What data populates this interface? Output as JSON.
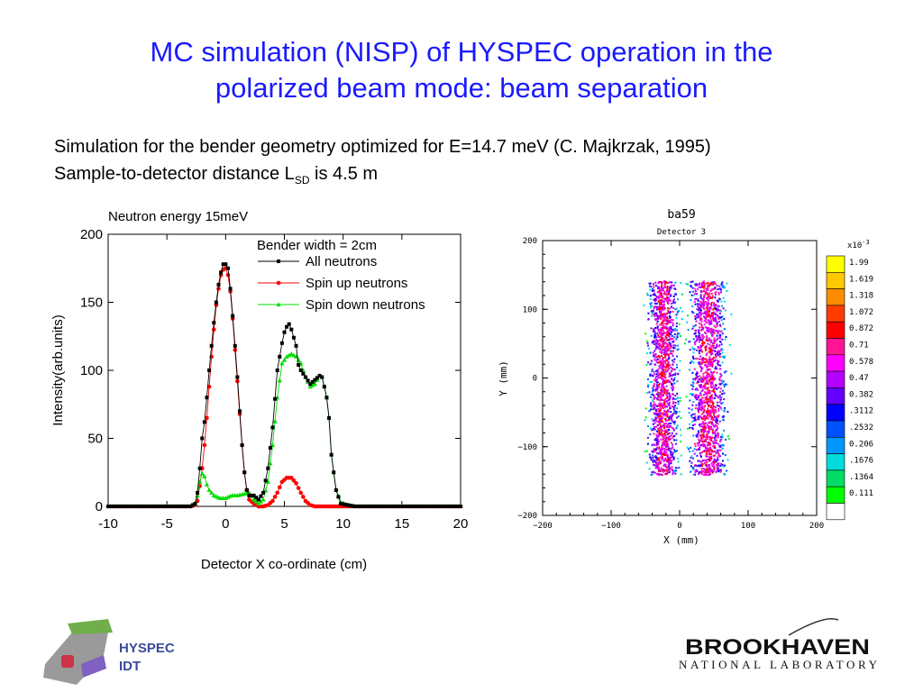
{
  "slide": {
    "title_line1": "MC simulation (NISP) of HYSPEC operation in the",
    "title_line2": "polarized beam mode: beam separation",
    "subtitle_line1": "Simulation for the bender geometry optimized for E=14.7 meV (C. Majkrzak, 1995)",
    "subtitle_line2_pre": "Sample-to-detector distance L",
    "subtitle_line2_sub": "SD",
    "subtitle_line2_post": " is 4.5 m"
  },
  "chart_data": [
    {
      "type": "line",
      "title": "Neutron energy 15meV",
      "annotation": "Bender width = 2cm",
      "xlabel": "Detector X co-ordinate (cm)",
      "ylabel": "Intensity(arb.units)",
      "xlim": [
        -10,
        20
      ],
      "ylim": [
        0,
        200
      ],
      "xticks": [
        "-10",
        "-5",
        "0",
        "5",
        "10",
        "15",
        "20"
      ],
      "yticks": [
        "0",
        "50",
        "100",
        "150",
        "200"
      ],
      "legend_position": "top-right",
      "series": [
        {
          "name": "All neutrons",
          "color": "#000000",
          "marker": "square",
          "x": [
            -10,
            -3,
            -2.6,
            -2.4,
            -2.2,
            -2,
            -1.8,
            -1.6,
            -1.4,
            -1.2,
            -1,
            -0.8,
            -0.6,
            -0.4,
            -0.2,
            0,
            0.2,
            0.4,
            0.6,
            0.8,
            1,
            1.2,
            1.4,
            1.6,
            1.8,
            2,
            2.4,
            2.8,
            3.2,
            3.6,
            4,
            4.4,
            4.8,
            5,
            5.2,
            5.4,
            5.6,
            5.8,
            6,
            6.2,
            6.4,
            6.8,
            7.2,
            7.6,
            8,
            8.2,
            8.4,
            8.6,
            8.8,
            9,
            9.4,
            9.8,
            10.4,
            11,
            12,
            13,
            20
          ],
          "y": [
            0,
            0,
            2,
            10,
            28,
            50,
            62,
            80,
            100,
            118,
            135,
            150,
            163,
            172,
            178,
            178,
            175,
            160,
            140,
            118,
            95,
            70,
            45,
            25,
            12,
            8,
            8,
            5,
            10,
            28,
            58,
            100,
            120,
            128,
            132,
            134,
            130,
            124,
            118,
            104,
            100,
            95,
            90,
            93,
            96,
            95,
            88,
            80,
            65,
            38,
            12,
            2,
            1,
            0,
            0,
            0,
            0
          ]
        },
        {
          "name": "Spin up neutrons",
          "color": "#ff0000",
          "marker": "circle",
          "x": [
            -10,
            -3,
            -2.6,
            -2.4,
            -2.2,
            -2,
            -1.8,
            -1.6,
            -1.4,
            -1.2,
            -1,
            -0.8,
            -0.6,
            -0.4,
            -0.2,
            0,
            0.2,
            0.4,
            0.6,
            0.8,
            1,
            1.2,
            1.4,
            1.6,
            1.8,
            2,
            2.4,
            2.8,
            3.2,
            3.6,
            4,
            4.4,
            4.8,
            5.2,
            5.6,
            6,
            6.4,
            6.8,
            7.2,
            7.6,
            8,
            9,
            20
          ],
          "y": [
            0,
            0,
            1,
            4,
            15,
            28,
            45,
            65,
            88,
            110,
            130,
            148,
            160,
            170,
            174,
            175,
            170,
            158,
            138,
            115,
            92,
            68,
            45,
            25,
            12,
            5,
            2,
            0,
            0,
            1,
            4,
            10,
            18,
            21,
            21,
            17,
            10,
            4,
            1,
            0,
            0,
            0,
            0
          ]
        },
        {
          "name": "Spin down neutrons",
          "color": "#00dd00",
          "marker": "triangle",
          "x": [
            -10,
            -3,
            -2.6,
            -2.4,
            -2.2,
            -2,
            -1.8,
            -1.6,
            -1.4,
            -1.2,
            -1,
            -0.5,
            0,
            0.5,
            1,
            1.5,
            2,
            2.4,
            2.8,
            3.2,
            3.6,
            4,
            4.4,
            4.8,
            5.2,
            5.6,
            6,
            6.4,
            6.8,
            7.2,
            7.6,
            8,
            8.2,
            8.4,
            8.6,
            8.8,
            9,
            9.4,
            9.8,
            10.4,
            11,
            12,
            13,
            20
          ],
          "y": [
            0,
            0,
            2,
            8,
            18,
            24,
            22,
            16,
            12,
            10,
            8,
            6,
            6,
            8,
            8,
            9,
            10,
            5,
            2,
            5,
            18,
            45,
            80,
            105,
            110,
            112,
            110,
            105,
            95,
            88,
            90,
            96,
            95,
            88,
            80,
            65,
            38,
            12,
            3,
            1,
            0,
            0,
            0,
            0
          ]
        }
      ]
    },
    {
      "type": "heatmap",
      "title": "ba59",
      "subtitle": "Detector 3",
      "xlabel": "X  (mm)",
      "ylabel": "Y  (mm)",
      "xlim": [
        -200,
        200
      ],
      "ylim": [
        -200,
        200
      ],
      "xticks": [
        "−200",
        "−100",
        "0",
        "100",
        "200"
      ],
      "yticks": [
        "−200",
        "−100",
        "0",
        "100",
        "200"
      ],
      "colorbar_exponent": "x10",
      "colorbar_exponent_power": "-3",
      "bands": [
        {
          "x_range": [
            -45,
            -5
          ],
          "y_range": [
            -140,
            142
          ]
        },
        {
          "x_range": [
            15,
            65
          ],
          "y_range": [
            -140,
            142
          ]
        }
      ],
      "colorbar": [
        {
          "label": "1.99",
          "color": "#ffff00"
        },
        {
          "label": "1.619",
          "color": "#ffc800"
        },
        {
          "label": "1.318",
          "color": "#ff8c00"
        },
        {
          "label": "1.072",
          "color": "#ff3c00"
        },
        {
          "label": "0.872",
          "color": "#ff0000"
        },
        {
          "label": "0.71",
          "color": "#ff1493"
        },
        {
          "label": "0.578",
          "color": "#ff00ff"
        },
        {
          "label": "0.47",
          "color": "#b400ff"
        },
        {
          "label": "0.382",
          "color": "#6400ff"
        },
        {
          "label": ".3112",
          "color": "#0000ff"
        },
        {
          "label": ".2532",
          "color": "#0050ff"
        },
        {
          "label": "0.206",
          "color": "#0096ff"
        },
        {
          "label": ".1676",
          "color": "#00dcdc"
        },
        {
          "label": ".1364",
          "color": "#00dc64"
        },
        {
          "label": "0.111",
          "color": "#00ff00"
        },
        {
          "label": "",
          "color": "#ffffff"
        }
      ]
    }
  ],
  "logos": {
    "left_line1": "HYSPEC",
    "left_line2": "IDT",
    "right_line1": "BROOKHAVEN",
    "right_line2": "NATIONAL LABORATORY"
  }
}
